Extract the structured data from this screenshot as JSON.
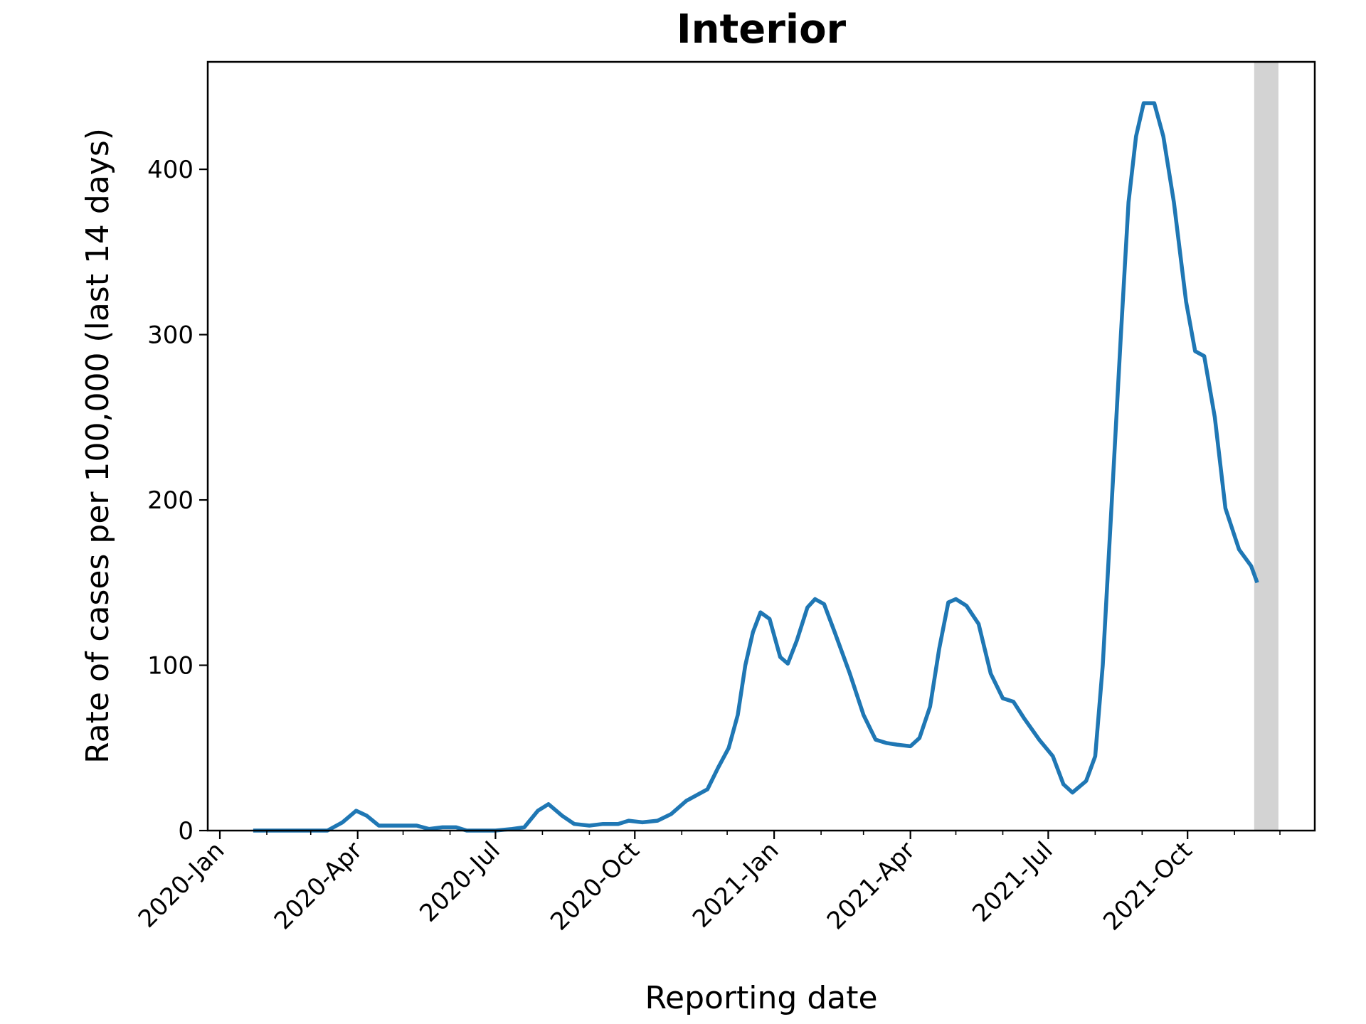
{
  "chart_data": {
    "type": "line",
    "title": "Interior",
    "xlabel": "Reporting date",
    "ylabel": "Rate of cases per 100,000 (last 14 days)",
    "x_type": "date",
    "xlim": [
      "2019-12-24",
      "2021-12-24"
    ],
    "ylim": [
      0,
      465
    ],
    "x_ticks": [
      {
        "date": "2020-01-01",
        "label": "2020-Jan"
      },
      {
        "date": "2020-04-01",
        "label": "2020-Apr"
      },
      {
        "date": "2020-07-01",
        "label": "2020-Jul"
      },
      {
        "date": "2020-10-01",
        "label": "2020-Oct"
      },
      {
        "date": "2021-01-01",
        "label": "2021-Jan"
      },
      {
        "date": "2021-04-01",
        "label": "2021-Apr"
      },
      {
        "date": "2021-07-01",
        "label": "2021-Jul"
      },
      {
        "date": "2021-10-01",
        "label": "2021-Oct"
      }
    ],
    "minor_x_ticks": [
      "2020-02-01",
      "2020-03-01",
      "2020-05-01",
      "2020-06-01",
      "2020-08-01",
      "2020-09-01",
      "2020-11-01",
      "2020-12-01",
      "2021-02-01",
      "2021-03-01",
      "2021-05-01",
      "2021-06-01",
      "2021-08-01",
      "2021-09-01",
      "2021-11-01",
      "2021-12-01"
    ],
    "y_ticks": [
      0,
      100,
      200,
      300,
      400
    ],
    "grid": false,
    "shaded_region": {
      "start": "2021-11-14",
      "end": "2021-11-30",
      "color": "#d3d3d3"
    },
    "series": [
      {
        "color": "#1f77b4",
        "points": [
          [
            "2020-01-23",
            0
          ],
          [
            "2020-02-20",
            0
          ],
          [
            "2020-03-12",
            0
          ],
          [
            "2020-03-22",
            5
          ],
          [
            "2020-03-31",
            12
          ],
          [
            "2020-04-07",
            9
          ],
          [
            "2020-04-15",
            3
          ],
          [
            "2020-04-30",
            3
          ],
          [
            "2020-05-10",
            3
          ],
          [
            "2020-05-18",
            1
          ],
          [
            "2020-05-27",
            2
          ],
          [
            "2020-06-05",
            2
          ],
          [
            "2020-06-12",
            0
          ],
          [
            "2020-07-01",
            0
          ],
          [
            "2020-07-12",
            1
          ],
          [
            "2020-07-20",
            2
          ],
          [
            "2020-07-29",
            12
          ],
          [
            "2020-08-05",
            16
          ],
          [
            "2020-08-14",
            9
          ],
          [
            "2020-08-22",
            4
          ],
          [
            "2020-09-01",
            3
          ],
          [
            "2020-09-10",
            4
          ],
          [
            "2020-09-20",
            4
          ],
          [
            "2020-09-27",
            6
          ],
          [
            "2020-10-06",
            5
          ],
          [
            "2020-10-16",
            6
          ],
          [
            "2020-10-25",
            10
          ],
          [
            "2020-11-04",
            18
          ],
          [
            "2020-11-18",
            25
          ],
          [
            "2020-11-25",
            38
          ],
          [
            "2020-12-02",
            50
          ],
          [
            "2020-12-08",
            70
          ],
          [
            "2020-12-13",
            100
          ],
          [
            "2020-12-18",
            120
          ],
          [
            "2020-12-23",
            132
          ],
          [
            "2020-12-29",
            128
          ],
          [
            "2021-01-05",
            105
          ],
          [
            "2021-01-10",
            101
          ],
          [
            "2021-01-16",
            115
          ],
          [
            "2021-01-23",
            135
          ],
          [
            "2021-01-28",
            140
          ],
          [
            "2021-02-03",
            137
          ],
          [
            "2021-02-10",
            120
          ],
          [
            "2021-02-20",
            95
          ],
          [
            "2021-03-01",
            70
          ],
          [
            "2021-03-09",
            55
          ],
          [
            "2021-03-16",
            53
          ],
          [
            "2021-03-23",
            52
          ],
          [
            "2021-04-01",
            51
          ],
          [
            "2021-04-07",
            56
          ],
          [
            "2021-04-14",
            75
          ],
          [
            "2021-04-20",
            110
          ],
          [
            "2021-04-26",
            138
          ],
          [
            "2021-05-01",
            140
          ],
          [
            "2021-05-08",
            136
          ],
          [
            "2021-05-16",
            125
          ],
          [
            "2021-05-24",
            95
          ],
          [
            "2021-06-01",
            80
          ],
          [
            "2021-06-08",
            78
          ],
          [
            "2021-06-15",
            68
          ],
          [
            "2021-06-25",
            55
          ],
          [
            "2021-07-04",
            45
          ],
          [
            "2021-07-11",
            28
          ],
          [
            "2021-07-17",
            23
          ],
          [
            "2021-07-26",
            30
          ],
          [
            "2021-08-01",
            45
          ],
          [
            "2021-08-06",
            100
          ],
          [
            "2021-08-12",
            200
          ],
          [
            "2021-08-18",
            300
          ],
          [
            "2021-08-23",
            380
          ],
          [
            "2021-08-28",
            420
          ],
          [
            "2021-09-02",
            440
          ],
          [
            "2021-09-09",
            440
          ],
          [
            "2021-09-15",
            420
          ],
          [
            "2021-09-22",
            380
          ],
          [
            "2021-09-30",
            320
          ],
          [
            "2021-10-06",
            290
          ],
          [
            "2021-10-12",
            287
          ],
          [
            "2021-10-19",
            250
          ],
          [
            "2021-10-26",
            195
          ],
          [
            "2021-11-04",
            170
          ],
          [
            "2021-11-12",
            160
          ],
          [
            "2021-11-16",
            150
          ]
        ]
      }
    ]
  }
}
